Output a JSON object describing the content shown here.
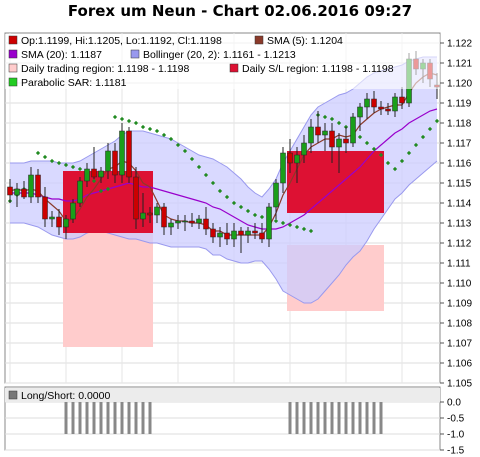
{
  "title": "Forex um Neun - Chart 02.06.2016 09:27",
  "colors": {
    "candle_up": "#1a9e1a",
    "candle_down": "#cc0000",
    "sma5": "#8b3a2a",
    "sma20": "#9900cc",
    "bollinger_fill": "#ccccff",
    "bollinger_line": "#9999ee",
    "trading_region": "#ffcccc",
    "sl_region": "#dd1133",
    "sar": "#228b22",
    "long_short_bar": "#888888"
  },
  "legend": [
    {
      "label": "Op:1.1199, Hi:1.1205, Lo:1.1192, Cl:1.1198",
      "color": "#cc0000"
    },
    {
      "label": "SMA (5): 1.1204",
      "color": "#8b3a2a"
    },
    {
      "label": "SMA (20): 1.1187",
      "color": "#9900cc"
    },
    {
      "label": "Bollinger (20, 2): 1.1161 - 1.1213",
      "color": "#9999ee"
    },
    {
      "label": "Daily trading region: 1.1198 - 1.1198",
      "color": "#ffcccc"
    },
    {
      "label": "Daily S/L region: 1.1198 - 1.1198",
      "color": "#dd1133"
    },
    {
      "label": "Parabolic SAR: 1.1181",
      "color": "#22cc22"
    }
  ],
  "lower_legend": {
    "label": "Long/Short: 0.0000",
    "color": "#777777"
  },
  "chart_data": [
    {
      "type": "candlestick",
      "ylim": [
        1.105,
        1.1225
      ],
      "y_ticks": [
        "1.122",
        "1.121",
        "1.120",
        "1.119",
        "1.118",
        "1.117",
        "1.116",
        "1.115",
        "1.114",
        "1.113",
        "1.112",
        "1.111",
        "1.110",
        "1.109",
        "1.108",
        "1.107",
        "1.106",
        "1.105"
      ],
      "candles": [
        [
          1.1148,
          1.1152,
          1.114,
          1.1144
        ],
        [
          1.1144,
          1.115,
          1.1138,
          1.1147
        ],
        [
          1.1147,
          1.1151,
          1.1142,
          1.1143
        ],
        [
          1.1143,
          1.1158,
          1.114,
          1.1154
        ],
        [
          1.1154,
          1.1157,
          1.114,
          1.1143
        ],
        [
          1.1143,
          1.1148,
          1.1128,
          1.1132
        ],
        [
          1.1132,
          1.1136,
          1.1128,
          1.1133
        ],
        [
          1.1133,
          1.1137,
          1.1124,
          1.1128
        ],
        [
          1.1128,
          1.1134,
          1.1122,
          1.1132
        ],
        [
          1.1132,
          1.1142,
          1.113,
          1.114
        ],
        [
          1.114,
          1.1153,
          1.1138,
          1.1151
        ],
        [
          1.1151,
          1.116,
          1.1148,
          1.1157
        ],
        [
          1.1157,
          1.1168,
          1.1152,
          1.1153
        ],
        [
          1.1153,
          1.1158,
          1.115,
          1.1156
        ],
        [
          1.1156,
          1.117,
          1.1152,
          1.1166
        ],
        [
          1.1166,
          1.117,
          1.115,
          1.1154
        ],
        [
          1.1154,
          1.118,
          1.115,
          1.1176
        ],
        [
          1.1176,
          1.1178,
          1.115,
          1.1153
        ],
        [
          1.1153,
          1.1158,
          1.1127,
          1.1132
        ],
        [
          1.1132,
          1.1145,
          1.1128,
          1.1135
        ],
        [
          1.1135,
          1.1138,
          1.113,
          1.1134
        ],
        [
          1.1134,
          1.114,
          1.113,
          1.1138
        ],
        [
          1.1138,
          1.114,
          1.1124,
          1.1128
        ],
        [
          1.1128,
          1.1132,
          1.1124,
          1.113
        ],
        [
          1.113,
          1.1134,
          1.1127,
          1.1131
        ],
        [
          1.1131,
          1.1134,
          1.1126,
          1.1131
        ],
        [
          1.1131,
          1.1135,
          1.1128,
          1.113
        ],
        [
          1.113,
          1.1134,
          1.1127,
          1.1132
        ],
        [
          1.1132,
          1.1138,
          1.1124,
          1.1127
        ],
        [
          1.1127,
          1.113,
          1.112,
          1.1123
        ],
        [
          1.1123,
          1.1128,
          1.1118,
          1.1125
        ],
        [
          1.1125,
          1.113,
          1.1119,
          1.1122
        ],
        [
          1.1122,
          1.113,
          1.1118,
          1.1126
        ],
        [
          1.1126,
          1.1128,
          1.1115,
          1.1124
        ],
        [
          1.1124,
          1.1128,
          1.112,
          1.1126
        ],
        [
          1.1126,
          1.113,
          1.1122,
          1.1125
        ],
        [
          1.1125,
          1.113,
          1.112,
          1.1122
        ],
        [
          1.1122,
          1.114,
          1.1118,
          1.1138
        ],
        [
          1.1138,
          1.1152,
          1.1132,
          1.115
        ],
        [
          1.115,
          1.1168,
          1.1145,
          1.1165
        ],
        [
          1.1165,
          1.1172,
          1.1155,
          1.116
        ],
        [
          1.116,
          1.1168,
          1.115,
          1.1164
        ],
        [
          1.1164,
          1.1174,
          1.116,
          1.117
        ],
        [
          1.117,
          1.1182,
          1.1165,
          1.1178
        ],
        [
          1.1178,
          1.1186,
          1.117,
          1.1174
        ],
        [
          1.1174,
          1.118,
          1.1166,
          1.1176
        ],
        [
          1.1176,
          1.118,
          1.116,
          1.1168
        ],
        [
          1.1168,
          1.1175,
          1.1155,
          1.1172
        ],
        [
          1.1172,
          1.1178,
          1.1165,
          1.117
        ],
        [
          1.117,
          1.1185,
          1.1168,
          1.1183
        ],
        [
          1.1183,
          1.119,
          1.1176,
          1.1188
        ],
        [
          1.1188,
          1.1195,
          1.1182,
          1.1192
        ],
        [
          1.1192,
          1.1196,
          1.1185,
          1.1188
        ],
        [
          1.1188,
          1.1191,
          1.1184,
          1.1187
        ],
        [
          1.1187,
          1.119,
          1.1184,
          1.1186
        ],
        [
          1.1186,
          1.1195,
          1.1183,
          1.1193
        ],
        [
          1.1193,
          1.1198,
          1.1187,
          1.119
        ],
        [
          1.119,
          1.1215,
          1.1188,
          1.1212
        ],
        [
          1.1212,
          1.1216,
          1.1204,
          1.1207
        ],
        [
          1.1207,
          1.1212,
          1.12,
          1.121
        ],
        [
          1.121,
          1.1212,
          1.1198,
          1.1202
        ],
        [
          1.1199,
          1.1205,
          1.1192,
          1.1198
        ]
      ],
      "sma5": [
        1.1146,
        1.1147,
        1.1146,
        1.1147,
        1.1146,
        1.1142,
        1.1139,
        1.1136,
        1.1131,
        1.1132,
        1.1137,
        1.1143,
        1.1147,
        1.1152,
        1.1157,
        1.1158,
        1.1161,
        1.116,
        1.1156,
        1.115,
        1.1148,
        1.1141,
        1.1134,
        1.1132,
        1.1131,
        1.1131,
        1.113,
        1.113,
        1.1129,
        1.1126,
        1.1126,
        1.1124,
        1.1124,
        1.1124,
        1.1124,
        1.1124,
        1.1124,
        1.1128,
        1.1135,
        1.1144,
        1.115,
        1.1157,
        1.1164,
        1.1168,
        1.117,
        1.1172,
        1.1172,
        1.1174,
        1.1173,
        1.1174,
        1.1179,
        1.1182,
        1.1185,
        1.1187,
        1.1188,
        1.1189,
        1.1189,
        1.1195,
        1.12,
        1.1203,
        1.1205,
        1.1204
      ],
      "sma20": [
        1.1145,
        1.1145,
        1.1145,
        1.1145,
        1.1144,
        1.1143,
        1.1142,
        1.1142,
        1.1141,
        1.1141,
        1.1142,
        1.1144,
        1.1145,
        1.1146,
        1.1147,
        1.1148,
        1.1149,
        1.115,
        1.1149,
        1.1148,
        1.1148,
        1.1147,
        1.1146,
        1.1145,
        1.1144,
        1.1143,
        1.1142,
        1.1141,
        1.114,
        1.1138,
        1.1137,
        1.1135,
        1.1133,
        1.1131,
        1.1129,
        1.1128,
        1.1127,
        1.1127,
        1.1127,
        1.1128,
        1.113,
        1.1132,
        1.1134,
        1.1137,
        1.114,
        1.1143,
        1.1146,
        1.1149,
        1.1152,
        1.1155,
        1.1158,
        1.1162,
        1.1166,
        1.1169,
        1.1172,
        1.1175,
        1.1177,
        1.118,
        1.1182,
        1.1184,
        1.1186,
        1.1187
      ],
      "boll_upper": [
        1.116,
        1.116,
        1.116,
        1.1161,
        1.1161,
        1.1161,
        1.1161,
        1.116,
        1.116,
        1.116,
        1.1161,
        1.1163,
        1.1165,
        1.1167,
        1.1169,
        1.1171,
        1.1174,
        1.1176,
        1.1176,
        1.1176,
        1.1175,
        1.1174,
        1.1173,
        1.1172,
        1.117,
        1.1168,
        1.1166,
        1.1164,
        1.1163,
        1.1162,
        1.116,
        1.1158,
        1.1155,
        1.1152,
        1.1148,
        1.1145,
        1.1143,
        1.1147,
        1.1152,
        1.116,
        1.1166,
        1.1172,
        1.1178,
        1.1184,
        1.1188,
        1.119,
        1.1192,
        1.1194,
        1.1195,
        1.1197,
        1.12,
        1.1203,
        1.1205,
        1.1206,
        1.1207,
        1.1208,
        1.1209,
        1.1211,
        1.1212,
        1.1213,
        1.1213,
        1.1213
      ],
      "boll_lower": [
        1.113,
        1.113,
        1.113,
        1.1129,
        1.1128,
        1.1126,
        1.1124,
        1.1123,
        1.1122,
        1.1122,
        1.1123,
        1.1125,
        1.1126,
        1.1126,
        1.1125,
        1.1124,
        1.1123,
        1.1122,
        1.1122,
        1.1121,
        1.112,
        1.112,
        1.1119,
        1.1118,
        1.1118,
        1.1118,
        1.1118,
        1.1118,
        1.1117,
        1.1114,
        1.1114,
        1.1112,
        1.1111,
        1.111,
        1.111,
        1.1111,
        1.1111,
        1.1107,
        1.1102,
        1.1096,
        1.1094,
        1.1092,
        1.109,
        1.109,
        1.1092,
        1.1096,
        1.11,
        1.1104,
        1.1109,
        1.1113,
        1.1116,
        1.1121,
        1.1127,
        1.1132,
        1.1137,
        1.1142,
        1.1145,
        1.1149,
        1.1152,
        1.1155,
        1.1158,
        1.1161
      ],
      "sar": [
        1.1141,
        1.1144,
        1.1147,
        1.115,
        1.1165,
        1.1163,
        1.1161,
        1.116,
        1.1159,
        1.1158,
        1.1157,
        1.1154,
        1.1151,
        1.1146,
        1.1147,
        1.1183,
        1.1182,
        1.1181,
        1.118,
        1.1178,
        1.1177,
        1.1176,
        1.1174,
        1.1172,
        1.1169,
        1.1166,
        1.1162,
        1.1158,
        1.1154,
        1.115,
        1.1146,
        1.1143,
        1.114,
        1.1138,
        1.1136,
        1.1134,
        1.1133,
        1.1132,
        1.1131,
        1.113,
        1.1129,
        1.1128,
        1.1127,
        1.1126,
        1.1184,
        1.1183,
        1.1182,
        1.118,
        1.1178,
        1.1176,
        1.1173,
        1.117,
        1.1167,
        1.1164,
        1.116,
        1.1157,
        1.1161,
        1.1165,
        1.1169,
        1.1173,
        1.1177,
        1.1181
      ],
      "trading_regions": [
        [
          8,
          20,
          1.1129,
          1.1068
        ],
        [
          40,
          53,
          1.1119,
          1.1086
        ]
      ],
      "sl_regions": [
        [
          8,
          20,
          1.1156,
          1.1125
        ],
        [
          40,
          53,
          1.1166,
          1.1135
        ]
      ]
    },
    {
      "type": "bar",
      "ylim": [
        -1.5,
        0.0
      ],
      "y_ticks": [
        "0.0",
        "-0.5",
        "-1.0",
        "-1.5"
      ],
      "bars": [
        [
          8,
          20,
          -1.0
        ],
        [
          40,
          53,
          -1.0
        ]
      ]
    }
  ]
}
